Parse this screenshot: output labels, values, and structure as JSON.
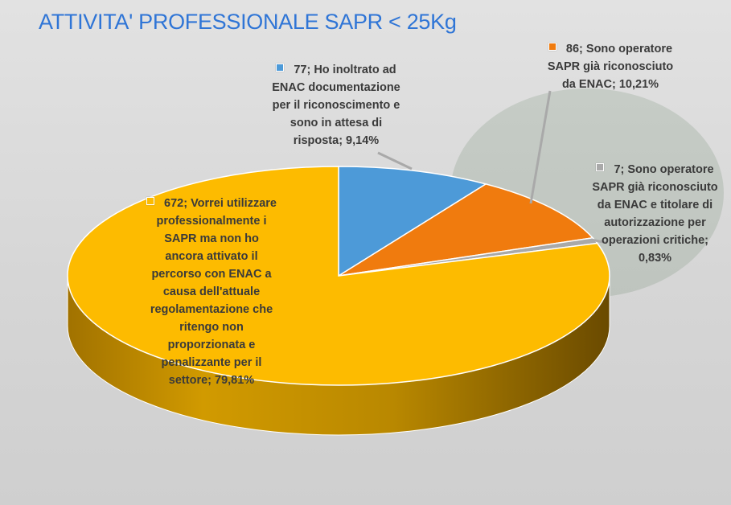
{
  "title": "ATTIVITA' PROFESSIONALE SAPR < 25Kg",
  "chart_data": {
    "type": "pie",
    "title": "ATTIVITA' PROFESSIONALE SAPR < 25Kg",
    "slices": [
      {
        "value": 77,
        "percent": "9,14%",
        "color": "#4d9ad8",
        "label_lines": [
          "77; Ho inoltrato ad",
          "ENAC documentazione",
          "per il riconoscimento e",
          "sono in attesa di",
          "risposta; 9,14%"
        ]
      },
      {
        "value": 86,
        "percent": "10,21%",
        "color": "#f07b0e",
        "label_lines": [
          "86; Sono operatore",
          "SAPR già riconosciuto",
          "da ENAC; 10,21%"
        ]
      },
      {
        "value": 7,
        "percent": "0,83%",
        "color": "#a9a9a9",
        "label_lines": [
          "7; Sono operatore",
          "SAPR già riconosciuto",
          "da ENAC e titolare di",
          "autorizzazione per",
          "operazioni critiche;",
          "0,83%"
        ]
      },
      {
        "value": 672,
        "percent": "79,81%",
        "color": "#fdbb00",
        "label_lines": [
          "672; Vorrei utilizzare",
          "professionalmente i",
          "SAPR ma non ho",
          "ancora attivato il",
          "percorso con ENAC a",
          "causa dell'attuale",
          "regolamentazione che",
          "ritengo non",
          "proporzionata e",
          "penalizzante per il",
          "settore; 79,81%"
        ]
      }
    ]
  }
}
